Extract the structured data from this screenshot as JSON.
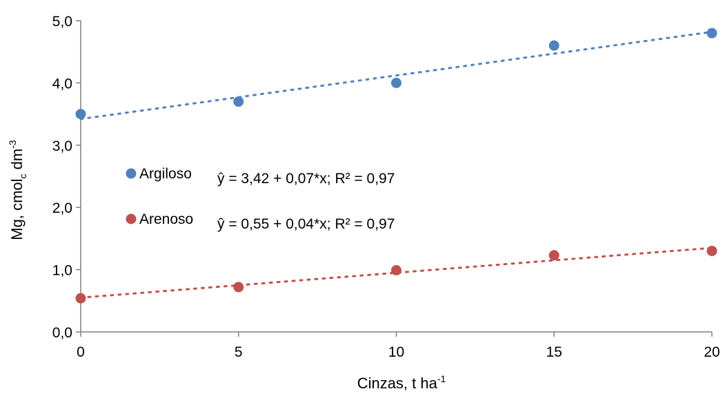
{
  "chart_data": {
    "type": "scatter",
    "title": "",
    "xlabel": {
      "text": "Cinzas, t ha",
      "sup": "-1"
    },
    "ylabel": {
      "text": "Mg, cmol",
      "sub": "c",
      "mid": " dm",
      "sup": "-3"
    },
    "x_ticks": [
      "0",
      "5",
      "10",
      "15",
      "20"
    ],
    "y_ticks": [
      "0,0",
      "1,0",
      "2,0",
      "3,0",
      "4,0",
      "5,0"
    ],
    "xlim": [
      0,
      20
    ],
    "ylim": [
      0,
      5
    ],
    "grid": false,
    "legend_position": "center-left",
    "series": [
      {
        "name": "Argiloso",
        "color": "#4f81bd",
        "x": [
          0,
          5,
          10,
          15,
          20
        ],
        "y": [
          3.5,
          3.7,
          4.0,
          4.6,
          4.8
        ],
        "trendline": {
          "intercept": 3.42,
          "slope": 0.07,
          "style": "dotted"
        },
        "equation": "ŷ = 3,42 + 0,07*x; R² = 0,97"
      },
      {
        "name": "Arenoso",
        "color": "#c0504d",
        "x": [
          0,
          5,
          10,
          15,
          20
        ],
        "y": [
          0.54,
          0.72,
          0.99,
          1.23,
          1.3
        ],
        "trendline": {
          "intercept": 0.55,
          "slope": 0.04,
          "style": "dotted"
        },
        "equation": "ŷ  = 0,55 + 0,04*x; R² = 0,97"
      }
    ]
  }
}
